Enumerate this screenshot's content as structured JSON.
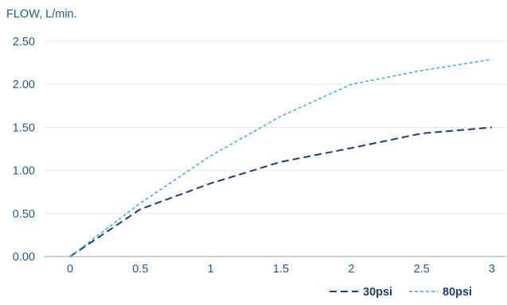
{
  "chart_data": {
    "type": "line",
    "ylabel": "FLOW, L/min.",
    "xlabel": "",
    "x": [
      0,
      0.5,
      1,
      1.5,
      2,
      2.5,
      3
    ],
    "x_tick_labels": [
      "0",
      "0.5",
      "1",
      "1.5",
      "2",
      "2.5",
      "3"
    ],
    "y_tick_labels": [
      "0.00",
      "0.50",
      "1.00",
      "1.50",
      "2.00",
      "2.50"
    ],
    "ylim": [
      0,
      2.5
    ],
    "xlim": [
      0,
      3
    ],
    "grid": "horizontal",
    "legend_position": "bottom-right",
    "series": [
      {
        "name": "30psi",
        "values": [
          0,
          0.55,
          0.85,
          1.1,
          1.26,
          1.43,
          1.5
        ],
        "color": "#1b3f73",
        "dash": "long-dash"
      },
      {
        "name": "80psi",
        "values": [
          0,
          0.62,
          1.17,
          1.63,
          2.0,
          2.16,
          2.29
        ],
        "color": "#2aa6d8",
        "dash": "short-dash"
      }
    ]
  }
}
